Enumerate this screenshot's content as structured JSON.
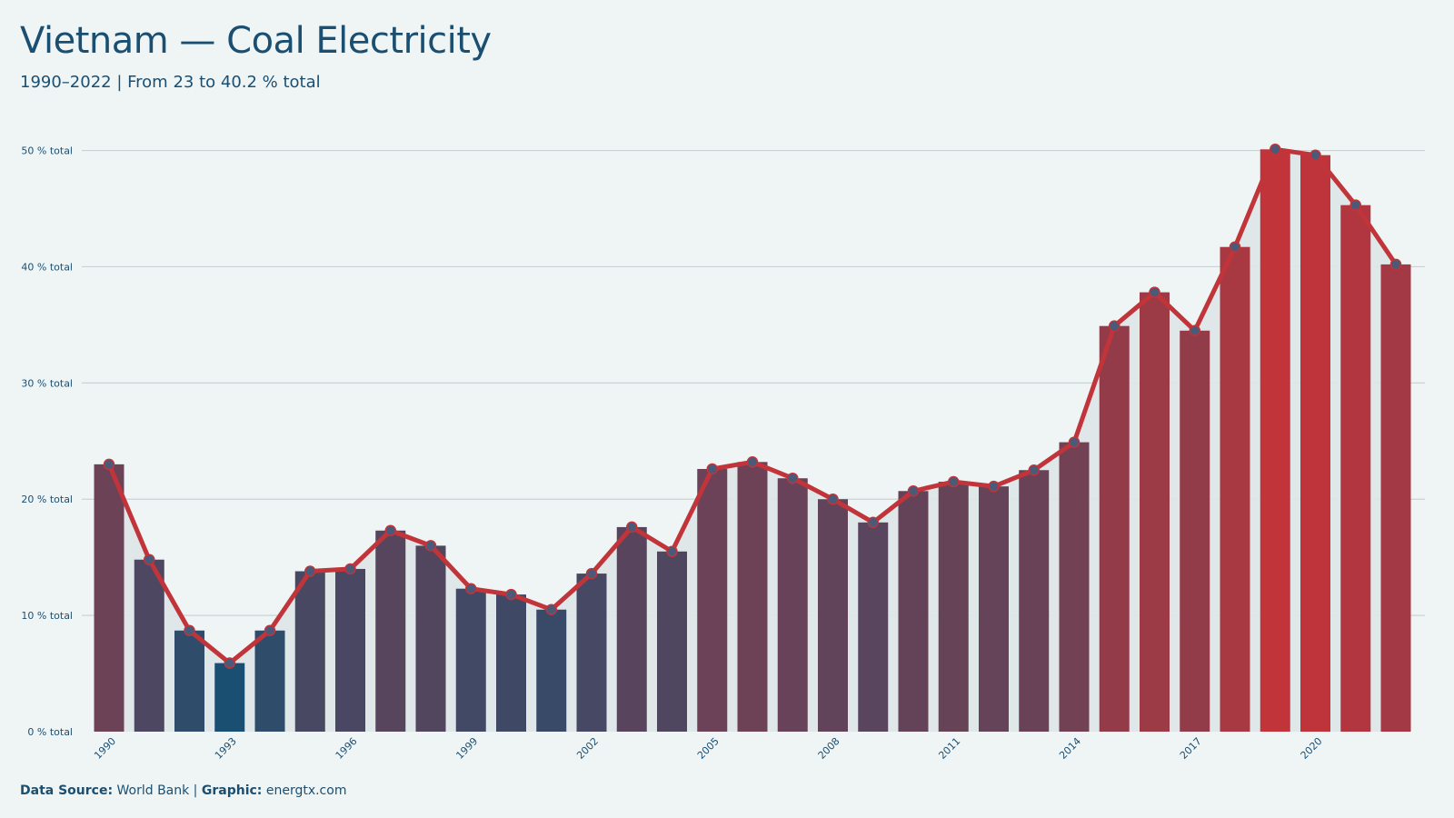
{
  "chart_data": {
    "type": "bar",
    "title": "Vietnam — Coal Electricity",
    "subtitle": "1990–2022 | From 23 to 40.2 % total",
    "y_unit_label": "% total",
    "ylim": [
      0,
      52
    ],
    "y_ticks": [
      0,
      10,
      20,
      30,
      40,
      50
    ],
    "x_tick_labels": [
      "1990",
      "1993",
      "1996",
      "1999",
      "2002",
      "2005",
      "2008",
      "2011",
      "2014",
      "2017",
      "2020"
    ],
    "categories": [
      1990,
      1991,
      1992,
      1993,
      1994,
      1995,
      1996,
      1997,
      1998,
      1999,
      2000,
      2001,
      2002,
      2003,
      2004,
      2005,
      2006,
      2007,
      2008,
      2009,
      2010,
      2011,
      2012,
      2013,
      2014,
      2015,
      2016,
      2017,
      2018,
      2019,
      2020,
      2021,
      2022
    ],
    "values": [
      23.0,
      14.8,
      8.7,
      5.9,
      8.7,
      13.8,
      14.0,
      17.3,
      16.0,
      12.3,
      11.8,
      10.5,
      13.6,
      17.6,
      15.5,
      22.6,
      23.2,
      21.8,
      20.0,
      18.0,
      20.7,
      21.5,
      21.1,
      22.5,
      24.9,
      34.9,
      37.8,
      34.5,
      41.7,
      50.1,
      49.6,
      45.3,
      40.2
    ],
    "line_overlay": true,
    "grid": true,
    "legend": "none",
    "colors": {
      "low": "#1b4f72",
      "high": "#c0343a",
      "line": "#c0343a",
      "marker": "#4a5a78",
      "gridline": "#c9d3d5",
      "area": "#dde6e8"
    }
  },
  "footer": {
    "source_label": "Data Source:",
    "source_value": " World Bank | ",
    "graphic_label": "Graphic:",
    "graphic_value": " energtx.com"
  }
}
